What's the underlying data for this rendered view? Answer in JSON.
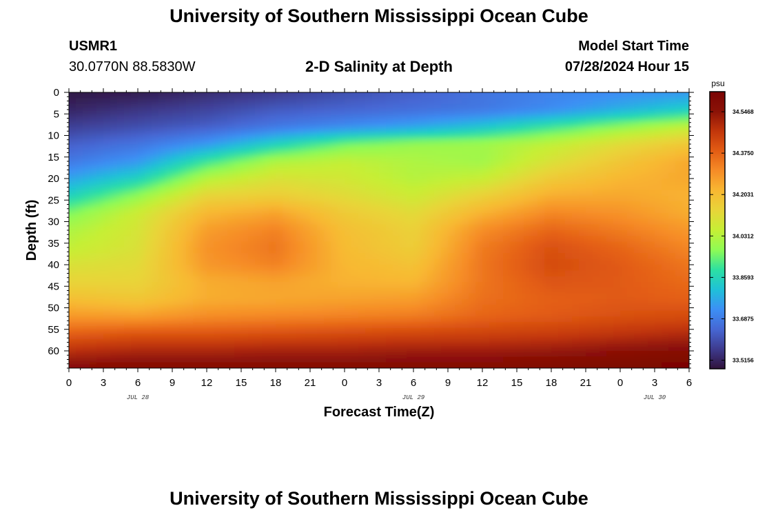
{
  "page": {
    "title": "University of Southern Mississippi Ocean Cube",
    "footer_title": "University of Southern Mississippi Ocean Cube",
    "station": "USMR1",
    "coords": "30.0770N  88.5830W",
    "subtitle": "2-D Salinity at Depth",
    "model_label": "Model Start Time",
    "model_time": "07/28/2024 Hour 15"
  },
  "chart_data": {
    "type": "heatmap",
    "title": "2-D Salinity at Depth",
    "xlabel": "Forecast Time(Z)",
    "ylabel": "Depth (ft)",
    "units": "psu",
    "x_ticks": [
      "0",
      "3",
      "6",
      "9",
      "12",
      "15",
      "18",
      "21",
      "0",
      "3",
      "6",
      "9",
      "12",
      "15",
      "18",
      "21",
      "0",
      "3",
      "6"
    ],
    "x_range_hours": [
      0,
      54
    ],
    "date_labels": [
      {
        "label": "JUL 28",
        "hour": 6
      },
      {
        "label": "JUL 29",
        "hour": 30
      },
      {
        "label": "JUL 30",
        "hour": 51
      }
    ],
    "y_ticks": [
      0,
      5,
      10,
      15,
      20,
      25,
      30,
      35,
      40,
      45,
      50,
      55,
      60
    ],
    "y_range_ft": [
      0,
      64
    ],
    "colorbar_ticks": [
      "34.5468",
      "34.3750",
      "34.2031",
      "34.0312",
      "33.8593",
      "33.6875",
      "33.5156"
    ],
    "colorbar_range": [
      33.48,
      34.63
    ],
    "colorbar_stops": [
      "#30123b",
      "#3e3b8e",
      "#4667d4",
      "#3c8ff5",
      "#1fc1d8",
      "#2ce0a2",
      "#8efb55",
      "#c6ef35",
      "#e8d539",
      "#f8b832",
      "#f68c27",
      "#e35d14",
      "#c2360b",
      "#8b1207",
      "#7a0403"
    ],
    "grid_hours": [
      0,
      6,
      12,
      18,
      24,
      30,
      36,
      42,
      48,
      54
    ],
    "grid_depths_ft": [
      0,
      4,
      8,
      12,
      16,
      20,
      24,
      28,
      32,
      36,
      40,
      44,
      48,
      52,
      56,
      60,
      64
    ],
    "salinity_psu": [
      [
        33.49,
        33.5,
        33.53,
        33.56,
        33.6,
        33.63,
        33.67,
        33.7,
        33.72,
        33.74
      ],
      [
        33.52,
        33.55,
        33.58,
        33.62,
        33.64,
        33.66,
        33.68,
        33.72,
        33.78,
        33.84
      ],
      [
        33.57,
        33.6,
        33.63,
        33.68,
        33.72,
        33.76,
        33.82,
        33.9,
        33.98,
        34.05
      ],
      [
        33.63,
        33.67,
        33.74,
        33.85,
        33.95,
        33.99,
        34.0,
        34.05,
        34.12,
        34.18
      ],
      [
        33.68,
        33.74,
        33.9,
        34.02,
        34.05,
        34.02,
        34.0,
        34.1,
        34.18,
        34.25
      ],
      [
        33.76,
        33.85,
        34.03,
        34.1,
        34.08,
        34.03,
        34.06,
        34.17,
        34.22,
        34.25
      ],
      [
        33.85,
        33.98,
        34.14,
        34.16,
        34.12,
        34.07,
        34.15,
        34.24,
        34.25,
        34.23
      ],
      [
        33.96,
        34.07,
        34.22,
        34.26,
        34.17,
        34.12,
        34.23,
        34.31,
        34.29,
        34.24
      ],
      [
        34.02,
        34.09,
        34.27,
        34.32,
        34.2,
        34.15,
        34.3,
        34.37,
        34.33,
        34.28
      ],
      [
        34.05,
        34.1,
        34.29,
        34.34,
        34.21,
        34.16,
        34.33,
        34.41,
        34.37,
        34.31
      ],
      [
        34.1,
        34.12,
        34.28,
        34.32,
        34.22,
        34.19,
        34.34,
        34.42,
        34.39,
        34.34
      ],
      [
        34.14,
        34.14,
        34.24,
        34.26,
        34.23,
        34.22,
        34.34,
        34.4,
        34.39,
        34.36
      ],
      [
        34.2,
        34.18,
        34.24,
        34.25,
        34.26,
        34.27,
        34.35,
        34.38,
        34.39,
        34.38
      ],
      [
        34.28,
        34.27,
        34.3,
        34.31,
        34.32,
        34.33,
        34.37,
        34.39,
        34.41,
        34.42
      ],
      [
        34.38,
        34.4,
        34.4,
        34.41,
        34.42,
        34.43,
        34.44,
        34.45,
        34.47,
        34.49
      ],
      [
        34.48,
        34.5,
        34.5,
        34.51,
        34.51,
        34.52,
        34.52,
        34.53,
        34.55,
        34.57
      ],
      [
        34.57,
        34.58,
        34.58,
        34.58,
        34.58,
        34.59,
        34.59,
        34.6,
        34.62,
        34.63
      ]
    ]
  }
}
